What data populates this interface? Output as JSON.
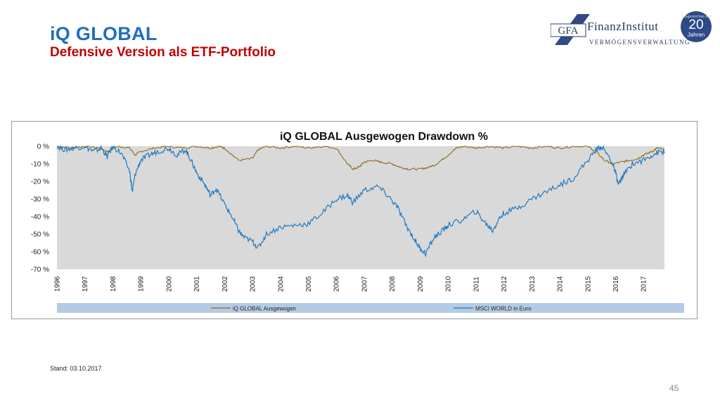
{
  "slide": {
    "title": "iQ GLOBAL",
    "subtitle": "Defensive Version als ETF-Portfolio",
    "stand": "Stand: 03.10.2017",
    "page_number": "45"
  },
  "logo": {
    "mark": "GFA",
    "name": "FinanzInstitut",
    "sub": "VERMÖGENSVERWALTUNG",
    "badge_top": "Ausgezeichnet seit",
    "badge_number": "20",
    "badge_unit": "Jahren"
  },
  "colors": {
    "title": "#1f6fbf",
    "subtitle": "#c00000",
    "plot_bg": "#d9d9d9",
    "legend_bg": "#b4cbe5",
    "series_iq": "#8a6d1e",
    "series_msci": "#1f7ac2"
  },
  "chart_data": {
    "type": "line",
    "title": "iQ GLOBAL Ausgewogen Drawdown %",
    "xlabel": "",
    "ylabel": "",
    "xlim": [
      1996,
      2017.75
    ],
    "ylim": [
      -70,
      0
    ],
    "y_ticks": [
      "0 %",
      "-10 %",
      "-20 %",
      "-30 %",
      "-40 %",
      "-50 %",
      "-60 %",
      "-70 %"
    ],
    "x_ticks": [
      "1996",
      "1997",
      "1998",
      "1999",
      "2000",
      "2001",
      "2002",
      "2003",
      "2004",
      "2005",
      "2006",
      "2007",
      "2008",
      "2009",
      "2010",
      "2011",
      "2012",
      "2013",
      "2014",
      "2015",
      "2016",
      "2017"
    ],
    "grid": false,
    "legend_position": "bottom",
    "series": [
      {
        "name": "iQ GLOBAL Ausgewogen",
        "color": "#8a6d1e",
        "x": [
          1996.0,
          1996.5,
          1997.0,
          1997.5,
          1997.8,
          1998.2,
          1998.6,
          1998.8,
          1999.0,
          1999.5,
          2000.0,
          2000.5,
          2001.0,
          2001.5,
          2001.8,
          2002.0,
          2002.5,
          2003.0,
          2003.2,
          2003.5,
          2004.0,
          2004.5,
          2005.0,
          2005.5,
          2006.0,
          2006.4,
          2006.6,
          2006.8,
          2007.0,
          2007.3,
          2007.6,
          2008.0,
          2008.3,
          2008.6,
          2009.0,
          2009.3,
          2009.6,
          2010.0,
          2010.3,
          2010.6,
          2011.0,
          2011.5,
          2012.0,
          2012.5,
          2013.0,
          2013.5,
          2014.0,
          2014.5,
          2015.0,
          2015.3,
          2015.6,
          2015.9,
          2016.2,
          2016.5,
          2016.8,
          2017.0,
          2017.3,
          2017.5,
          2017.75
        ],
        "values": [
          0,
          -1,
          0,
          -1,
          -3,
          0,
          -1,
          -5,
          -3,
          -1,
          0,
          -1,
          0,
          -1,
          0,
          -1,
          -8,
          -7,
          -2,
          0,
          -1,
          0,
          -1,
          0,
          -1,
          -10,
          -13,
          -12,
          -9,
          -8,
          -9,
          -10,
          -12,
          -13,
          -13,
          -12,
          -10,
          -5,
          -1,
          0,
          -1,
          0,
          -1,
          0,
          -1,
          0,
          -1,
          0,
          0,
          -3,
          -8,
          -10,
          -9,
          -8,
          -7,
          -5,
          -3,
          -1,
          -2
        ]
      },
      {
        "name": "MSCI WORLD in Euro",
        "color": "#1f7ac2",
        "x": [
          1996.0,
          1996.3,
          1996.6,
          1997.0,
          1997.3,
          1997.6,
          1997.8,
          1998.0,
          1998.3,
          1998.6,
          1998.7,
          1998.8,
          1999.0,
          1999.3,
          1999.6,
          2000.0,
          2000.3,
          2000.6,
          2000.8,
          2001.0,
          2001.3,
          2001.5,
          2001.7,
          2002.0,
          2002.3,
          2002.5,
          2002.7,
          2003.0,
          2003.2,
          2003.5,
          2004.0,
          2004.5,
          2005.0,
          2005.5,
          2006.0,
          2006.4,
          2006.6,
          2007.0,
          2007.5,
          2007.9,
          2008.2,
          2008.5,
          2008.8,
          2009.0,
          2009.2,
          2009.5,
          2009.8,
          2010.0,
          2010.5,
          2011.0,
          2011.3,
          2011.6,
          2011.8,
          2012.0,
          2012.5,
          2013.0,
          2013.5,
          2014.0,
          2014.5,
          2015.0,
          2015.3,
          2015.5,
          2015.8,
          2016.0,
          2016.1,
          2016.3,
          2016.6,
          2017.0,
          2017.3,
          2017.6,
          2017.75
        ],
        "values": [
          0,
          -2,
          -1,
          0,
          -3,
          -1,
          -6,
          0,
          -4,
          -14,
          -26,
          -16,
          -8,
          -5,
          -3,
          -1,
          -5,
          -2,
          -8,
          -15,
          -22,
          -28,
          -24,
          -33,
          -41,
          -48,
          -52,
          -54,
          -58,
          -50,
          -46,
          -45,
          -44,
          -38,
          -30,
          -28,
          -32,
          -25,
          -23,
          -29,
          -35,
          -45,
          -53,
          -58,
          -61,
          -52,
          -48,
          -45,
          -42,
          -37,
          -43,
          -48,
          -42,
          -38,
          -35,
          -30,
          -26,
          -22,
          -18,
          -8,
          -2,
          0,
          -7,
          -15,
          -22,
          -16,
          -10,
          -8,
          -5,
          -3,
          -4
        ]
      }
    ]
  }
}
